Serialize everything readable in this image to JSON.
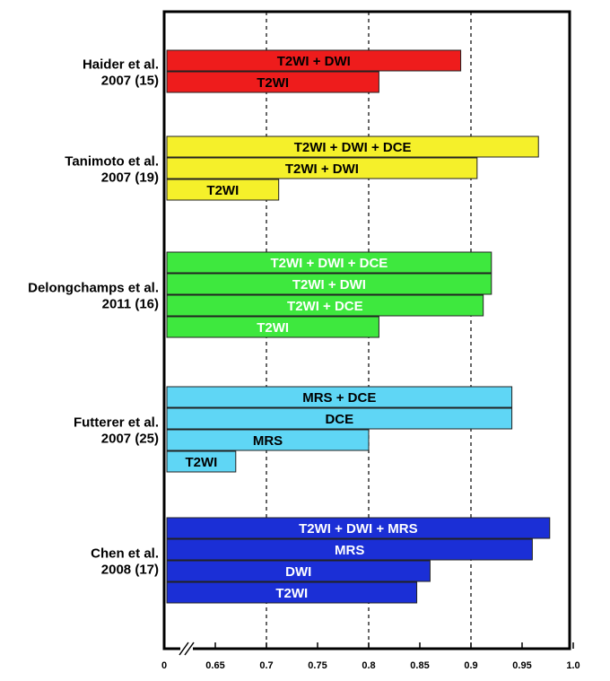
{
  "chart_data": {
    "type": "bar",
    "orientation": "horizontal",
    "title": "",
    "xlabel": "",
    "ylabel": "",
    "xlim": [
      0.6,
      1.0
    ],
    "axis_break": true,
    "x_ticks": [
      {
        "label": "0",
        "value": 0
      },
      {
        "label": "0.65",
        "value": 0.65
      },
      {
        "label": "0.7",
        "value": 0.7
      },
      {
        "label": "0.75",
        "value": 0.75
      },
      {
        "label": "0.8",
        "value": 0.8
      },
      {
        "label": "0.85",
        "value": 0.85
      },
      {
        "label": "0.9",
        "value": 0.9
      },
      {
        "label": "0.95",
        "value": 0.95
      },
      {
        "label": "1.0",
        "value": 1.0
      }
    ],
    "gridlines_dashed_at": [
      0.7,
      0.8,
      0.9
    ],
    "groups": [
      {
        "line1": "Haider et al.",
        "line2": "2007 (15)",
        "color": "#ee1c1c",
        "text_color": "#000000",
        "bars": [
          {
            "label": "T2WI + DWI",
            "value": 0.89
          },
          {
            "label": "T2WI",
            "value": 0.81
          }
        ]
      },
      {
        "line1": "Tanimoto et al.",
        "line2": "2007 (19)",
        "color": "#f5f02a",
        "text_color": "#000000",
        "bars": [
          {
            "label": "T2WI + DWI + DCE",
            "value": 0.966
          },
          {
            "label": "T2WI + DWI",
            "value": 0.906
          },
          {
            "label": "T2WI",
            "value": 0.712
          }
        ]
      },
      {
        "line1": "Delongchamps et al.",
        "line2": "2011 (16)",
        "color": "#3ee83e",
        "text_color": "#ffffff",
        "bars": [
          {
            "label": "T2WI + DWI + DCE",
            "value": 0.92
          },
          {
            "label": "T2WI + DWI",
            "value": 0.92
          },
          {
            "label": "T2WI + DCE",
            "value": 0.912
          },
          {
            "label": "T2WI",
            "value": 0.81
          }
        ]
      },
      {
        "line1": "Futterer et al.",
        "line2": "2007 (25)",
        "color": "#5fd6f5",
        "text_color": "#000000",
        "bars": [
          {
            "label": "MRS + DCE",
            "value": 0.94
          },
          {
            "label": "DCE",
            "value": 0.94
          },
          {
            "label": "MRS",
            "value": 0.8
          },
          {
            "label": "T2WI",
            "value": 0.67
          }
        ]
      },
      {
        "line1": "Chen et al.",
        "line2": "2008 (17)",
        "color": "#1b2fd6",
        "text_color": "#ffffff",
        "bars": [
          {
            "label": "T2WI + DWI + MRS",
            "value": 0.977
          },
          {
            "label": "MRS",
            "value": 0.96
          },
          {
            "label": "DWI",
            "value": 0.86
          },
          {
            "label": "T2WI",
            "value": 0.847
          }
        ]
      }
    ]
  }
}
